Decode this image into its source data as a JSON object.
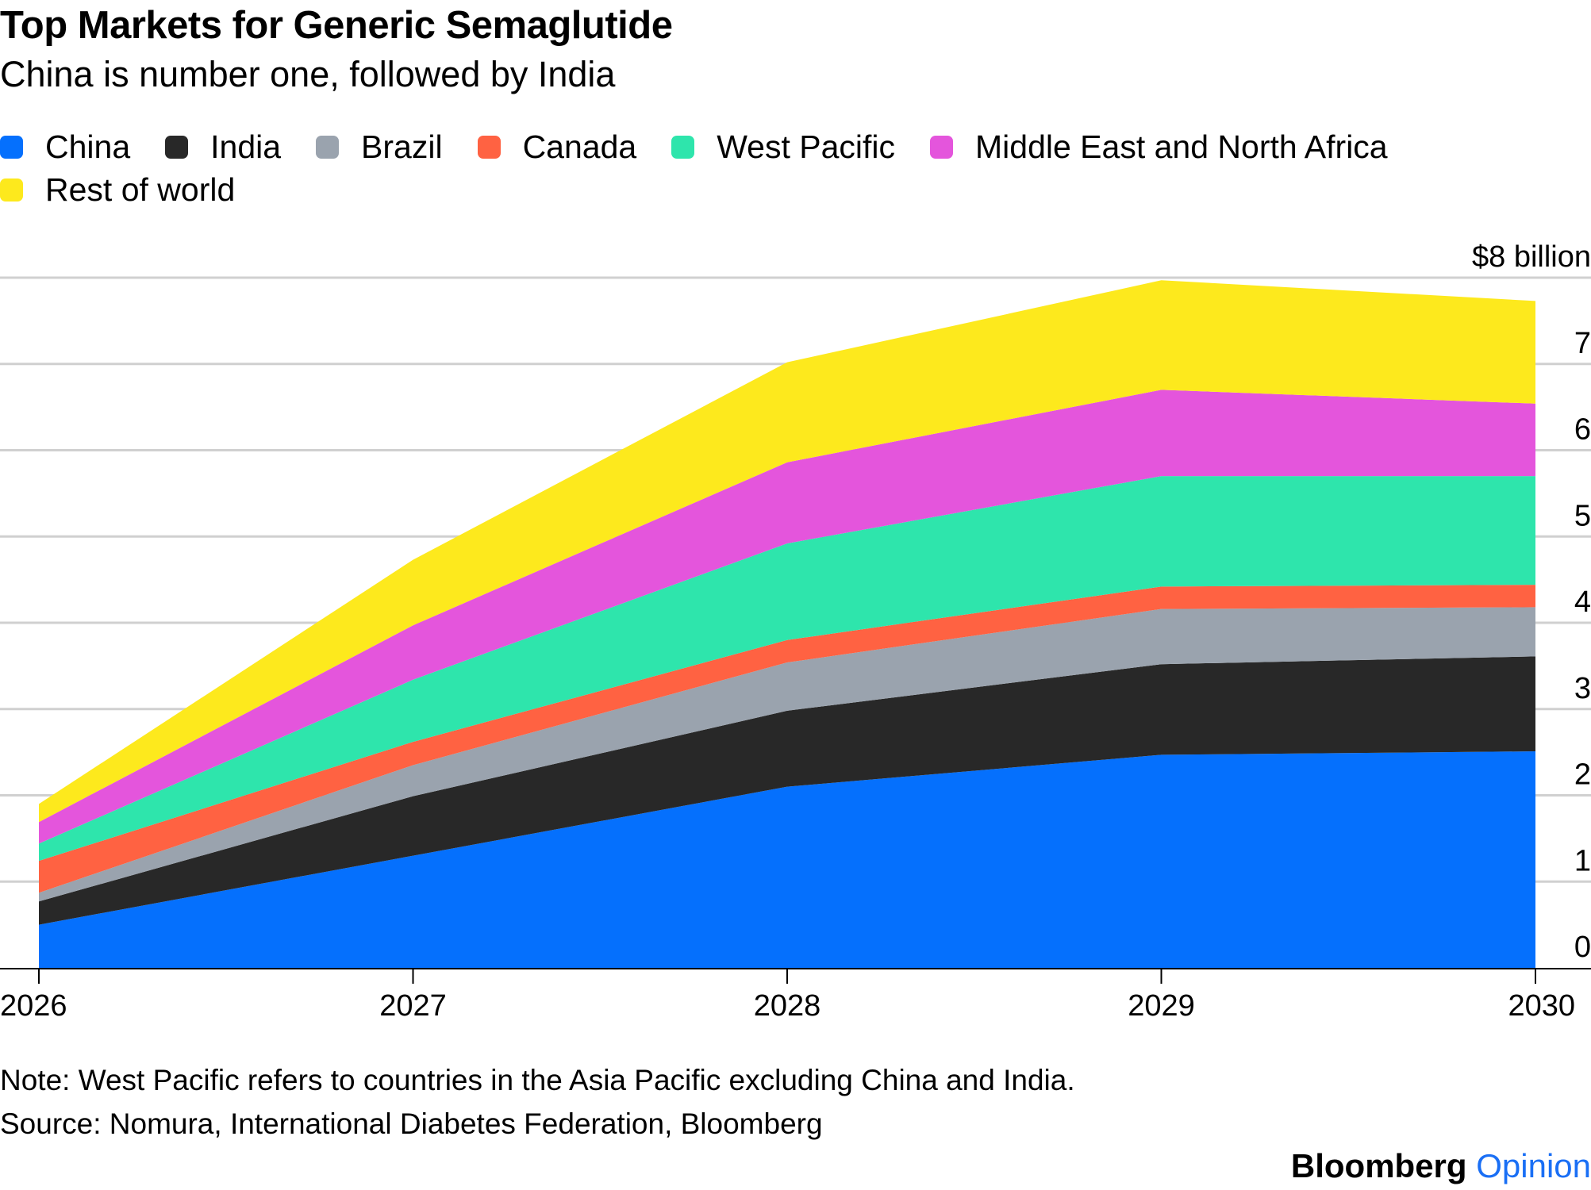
{
  "header": {
    "title": "Top Markets for Generic Semaglutide",
    "subtitle": "China is number one, followed by India"
  },
  "colors": {
    "China": "#0570fd",
    "India": "#282828",
    "Brazil": "#9aa3ae",
    "Canada": "#ff6242",
    "West Pacific": "#2ee5ac",
    "Middle East and North Africa": "#e455dc",
    "Rest of world": "#fde91d",
    "gridline": "#d0d0d0",
    "axis": "#000000"
  },
  "chart_data": {
    "type": "area",
    "stacked": true,
    "x": [
      "2026",
      "2027",
      "2028",
      "2029",
      "2030"
    ],
    "ylim": [
      0,
      8
    ],
    "y_ticks": [
      "0",
      "1",
      "2",
      "3",
      "4",
      "5",
      "6",
      "7",
      "$8 billion"
    ],
    "y_tick_values": [
      0,
      1,
      2,
      3,
      4,
      5,
      6,
      7,
      8
    ],
    "ylabel": "",
    "xlabel": "",
    "grid": true,
    "legend_position": "top",
    "series": [
      {
        "name": "China",
        "values": [
          0.5,
          1.3,
          2.1,
          2.47,
          2.51
        ]
      },
      {
        "name": "India",
        "values": [
          0.27,
          0.69,
          0.88,
          1.05,
          1.1
        ]
      },
      {
        "name": "Brazil",
        "values": [
          0.1,
          0.36,
          0.56,
          0.64,
          0.57
        ]
      },
      {
        "name": "Canada",
        "values": [
          0.37,
          0.27,
          0.26,
          0.26,
          0.26
        ]
      },
      {
        "name": "West Pacific",
        "values": [
          0.2,
          0.72,
          1.12,
          1.28,
          1.26
        ]
      },
      {
        "name": "Middle East and North Africa",
        "values": [
          0.25,
          0.63,
          0.94,
          1.0,
          0.84
        ]
      },
      {
        "name": "Rest of world",
        "values": [
          0.21,
          0.76,
          1.16,
          1.27,
          1.19
        ]
      }
    ]
  },
  "footer": {
    "note": "Note: West Pacific refers to countries in the Asia Pacific excluding China and India.",
    "source": "Source: Nomura, International Diabetes Federation, Bloomberg",
    "brand_part1": "Bloomberg",
    "brand_part2": "Opinion"
  }
}
